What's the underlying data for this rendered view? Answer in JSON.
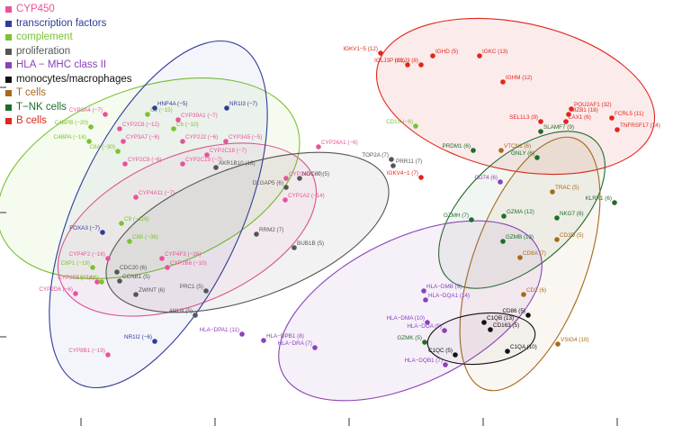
{
  "legend": [
    {
      "label": "CYP450",
      "color": "#e8539a"
    },
    {
      "label": "transcription factors",
      "color": "#2e3c9a"
    },
    {
      "label": "complement",
      "color": "#7ac231"
    },
    {
      "label": "proliferation",
      "color": "#555555"
    },
    {
      "label": "HLA − MHC class II",
      "color": "#8a42b8"
    },
    {
      "label": "monocytes/macrophages",
      "color": "#111111"
    },
    {
      "label": "T cells",
      "color": "#a56a1a"
    },
    {
      "label": "T−NK cells",
      "color": "#1e6e2a"
    },
    {
      "label": "B cells",
      "color": "#e0261c"
    }
  ],
  "points": [
    {
      "label": "CYP3A4 (−7)",
      "group": "CYP450"
    },
    {
      "label": "C5 (−15)",
      "group": "complement"
    },
    {
      "label": "HNF4A (−5)",
      "group": "transcription factors"
    },
    {
      "label": "NR1I3 (−7)",
      "group": "transcription factors"
    },
    {
      "label": "C4BPB (−20)",
      "group": "complement"
    },
    {
      "label": "CYP2C8 (−12)",
      "group": "CYP450"
    },
    {
      "label": "C6 (−10)",
      "group": "complement"
    },
    {
      "label": "CYP39A1 (−7)",
      "group": "CYP450"
    },
    {
      "label": "C4BPA (−16)",
      "group": "complement"
    },
    {
      "label": "CYP3A7 (−6)",
      "group": "CYP450"
    },
    {
      "label": "CYP2J2 (−6)",
      "group": "CYP450"
    },
    {
      "label": "CYP3A5 (−5)",
      "group": "CYP450"
    },
    {
      "label": "CYP2C18 (−7)",
      "group": "CYP450"
    },
    {
      "label": "C8A (−30)",
      "group": "complement"
    },
    {
      "label": "CYP2C9 (−6)",
      "group": "CYP450"
    },
    {
      "label": "CYP2C19 (−7)",
      "group": "CYP450"
    },
    {
      "label": "AKR1B10 (18)",
      "group": "proliferation"
    },
    {
      "label": "CYP4A11 (−7)",
      "group": "CYP450"
    },
    {
      "label": "CYP26A1 (−6)",
      "group": "CYP450"
    },
    {
      "label": "CYP1A1 (−7)",
      "group": "CYP450"
    },
    {
      "label": "NDC80 (5)",
      "group": "proliferation"
    },
    {
      "label": "DLGAP5 (6)",
      "group": "proliferation"
    },
    {
      "label": "CYP1A2 (−14)",
      "group": "CYP450"
    },
    {
      "label": "C9 (−116)",
      "group": "complement"
    },
    {
      "label": "FOXA3 (−7)",
      "group": "transcription factors"
    },
    {
      "label": "C8B (−36)",
      "group": "complement"
    },
    {
      "label": "RRM2 (7)",
      "group": "proliferation"
    },
    {
      "label": "CYP4F2 (−16)",
      "group": "CYP450"
    },
    {
      "label": "CYP4F3 (−26)",
      "group": "CYP450"
    },
    {
      "label": "CYP2B6 (−10)",
      "group": "CYP450"
    },
    {
      "label": "BUB1B (5)",
      "group": "proliferation"
    },
    {
      "label": "C8P1 (−19)",
      "group": "complement"
    },
    {
      "label": "CDC20 (6)",
      "group": "proliferation"
    },
    {
      "label": "CYP2E1 (−14)",
      "group": "CYP450"
    },
    {
      "label": "C8G (−6)",
      "group": "complement"
    },
    {
      "label": "CCNB1 (5)",
      "group": "proliferation"
    },
    {
      "label": "CYP2D6 (−6)",
      "group": "CYP450"
    },
    {
      "label": "ZWINT (6)",
      "group": "proliferation"
    },
    {
      "label": "PRC1 (5)",
      "group": "proliferation"
    },
    {
      "label": "ANLN (5)",
      "group": "proliferation"
    },
    {
      "label": "NR1I2 (−6)",
      "group": "transcription factors"
    },
    {
      "label": "CYP8B1 (−19)",
      "group": "CYP450"
    },
    {
      "label": "TOP2A (7)",
      "group": "proliferation"
    },
    {
      "label": "PRR11 (7)",
      "group": "proliferation"
    },
    {
      "label": "IGKV4−1 (7)",
      "group": "B cells"
    },
    {
      "label": "IGKV1−5 (12)",
      "group": "B cells"
    },
    {
      "label": "IGHD (5)",
      "group": "B cells"
    },
    {
      "label": "IGKC (13)",
      "group": "B cells"
    },
    {
      "label": "IGLJ3P (10)",
      "group": "B cells"
    },
    {
      "label": "IGLJ3 (8)",
      "group": "B cells"
    },
    {
      "label": "IGHM (12)",
      "group": "B cells"
    },
    {
      "label": "CD1S (−6)",
      "group": "complement"
    },
    {
      "label": "POU2AF1 (32)",
      "group": "B cells"
    },
    {
      "label": "MZB1 (18)",
      "group": "B cells"
    },
    {
      "label": "SEL1L3 (9)",
      "group": "B cells"
    },
    {
      "label": "LAX1 (6)",
      "group": "B cells"
    },
    {
      "label": "FCRL5 (11)",
      "group": "B cells"
    },
    {
      "label": "TNFRSF17 (14)",
      "group": "B cells"
    },
    {
      "label": "SLAMF7 (9)",
      "group": "T−NK cells"
    },
    {
      "label": "PRDM1 (6)",
      "group": "T−NK cells"
    },
    {
      "label": "VTCN1 (6)",
      "group": "T cells"
    },
    {
      "label": "GNLY (6)",
      "group": "T−NK cells"
    },
    {
      "label": "CD74 (6)",
      "group": "HLA − MHC class II"
    },
    {
      "label": "TRAC (5)",
      "group": "T cells"
    },
    {
      "label": "KLRK1 (6)",
      "group": "T−NK cells"
    },
    {
      "label": "GZMH (7)",
      "group": "T−NK cells"
    },
    {
      "label": "GZMA (12)",
      "group": "T−NK cells"
    },
    {
      "label": "NKG7 (6)",
      "group": "T−NK cells"
    },
    {
      "label": "GZMB (13)",
      "group": "T−NK cells"
    },
    {
      "label": "CD3D (5)",
      "group": "T cells"
    },
    {
      "label": "CD8A (7)",
      "group": "T cells"
    },
    {
      "label": "HLA−DMB (9)",
      "group": "HLA − MHC class II"
    },
    {
      "label": "HLA−DQA1 (14)",
      "group": "HLA − MHC class II"
    },
    {
      "label": "CD2 (6)",
      "group": "T cells"
    },
    {
      "label": "HLA−DPA1 (11)",
      "group": "HLA − MHC class II"
    },
    {
      "label": "HLA−DMA (10)",
      "group": "HLA − MHC class II"
    },
    {
      "label": "C1QB (13)",
      "group": "monocytes/macrophages"
    },
    {
      "label": "CD86 (5)",
      "group": "monocytes/macrophages"
    },
    {
      "label": "HLA−DPB1 (8)",
      "group": "HLA − MHC class II"
    },
    {
      "label": "HLA−DOA (9)",
      "group": "HLA − MHC class II"
    },
    {
      "label": "CD163 (5)",
      "group": "monocytes/macrophages"
    },
    {
      "label": "HLA−DRA (7)",
      "group": "HLA − MHC class II"
    },
    {
      "label": "GZMK (5)",
      "group": "T−NK cells"
    },
    {
      "label": "VSIG4 (10)",
      "group": "T cells"
    },
    {
      "label": "C1QA (10)",
      "group": "monocytes/macrophages"
    },
    {
      "label": "C1QC (5)",
      "group": "monocytes/macrophages"
    },
    {
      "label": "HLA−DQB1 (7)",
      "group": "HLA − MHC class II"
    }
  ]
}
